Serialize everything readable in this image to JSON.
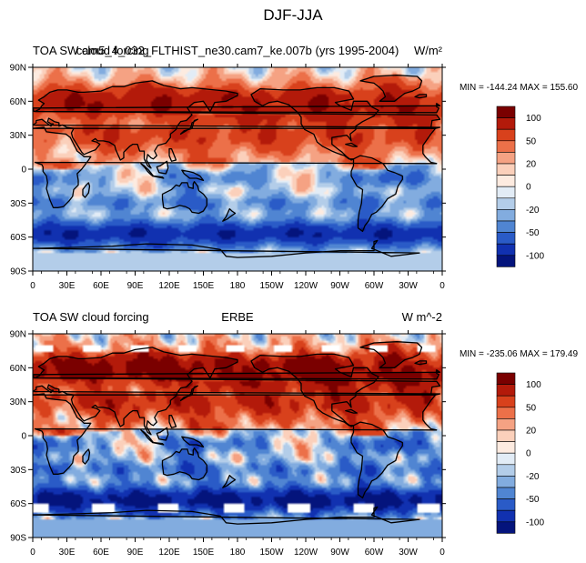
{
  "page_title": "DJF-JJA",
  "chart_data": [
    {
      "type": "heatmap",
      "title_left": "TOA SW cloud forcing",
      "title_center": "cam5_4_032_FLTHIST_ne30.cam7_ke.007b (yrs 1995-2004)",
      "units": "W/m²",
      "stats": "MIN = -144.24 MAX = 155.60",
      "x_ticks": [
        "0",
        "30E",
        "60E",
        "90E",
        "120E",
        "150E",
        "180",
        "150W",
        "120W",
        "90W",
        "60W",
        "30W",
        "0"
      ],
      "y_ticks": [
        "90N",
        "60N",
        "30N",
        "0",
        "30S",
        "60S",
        "90S"
      ],
      "colorbar_levels": [
        "100",
        "50",
        "20",
        "0",
        "-20",
        "-50",
        "-100"
      ],
      "colorbar_colors": [
        "#7a0000",
        "#b31a0a",
        "#d8411c",
        "#ec7049",
        "#f5a283",
        "#fbd0bb",
        "#fdebe0",
        "#e2ecf6",
        "#b3cde9",
        "#82acdf",
        "#5085d2",
        "#2a5bc7",
        "#1131b0",
        "#04147c"
      ]
    },
    {
      "type": "heatmap",
      "title_left": "TOA SW cloud forcing",
      "title_center": "ERBE",
      "units": "W m^-2",
      "stats": "MIN = -235.06 MAX = 179.49",
      "x_ticks": [
        "0",
        "30E",
        "60E",
        "90E",
        "120E",
        "150E",
        "180",
        "150W",
        "120W",
        "90W",
        "60W",
        "30W",
        "0"
      ],
      "y_ticks": [
        "90N",
        "60N",
        "30N",
        "0",
        "30S",
        "60S",
        "90S"
      ],
      "colorbar_levels": [
        "100",
        "50",
        "20",
        "0",
        "-20",
        "-50",
        "-100"
      ],
      "colorbar_colors": [
        "#7a0000",
        "#b31a0a",
        "#d8411c",
        "#ec7049",
        "#f5a283",
        "#fbd0bb",
        "#fdebe0",
        "#e2ecf6",
        "#b3cde9",
        "#82acdf",
        "#5085d2",
        "#2a5bc7",
        "#1131b0",
        "#04147c"
      ]
    }
  ]
}
